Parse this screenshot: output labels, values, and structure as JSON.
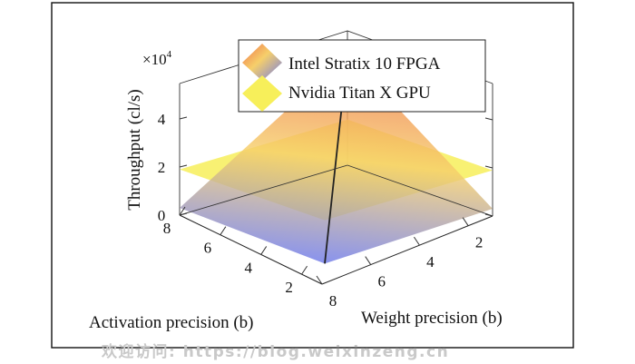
{
  "chart_data": {
    "type": "surface",
    "xlabel": "Weight precision (b)",
    "ylabel": "Activation precision (b)",
    "zlabel": "Throughput (cl/s)",
    "z_multiplier": "×10",
    "z_multiplier_exp": "4",
    "x_ticks": [
      "2",
      "4",
      "6",
      "8"
    ],
    "y_ticks": [
      "2",
      "4",
      "6",
      "8"
    ],
    "z_ticks": [
      "0",
      "2",
      "4"
    ],
    "legend": {
      "placement": "top-center",
      "entries": [
        "Intel Stratix 10 FPGA",
        "Nvidia Titan X GPU"
      ]
    },
    "series": [
      {
        "name": "Intel Stratix 10 FPGA",
        "colormap": [
          "#ef6f4a",
          "#f6cf6a",
          "#6f7bea"
        ],
        "corners": [
          {
            "weight": 1,
            "activation": 1,
            "throughput": 4.6
          },
          {
            "weight": 8,
            "activation": 1,
            "throughput": 0.3
          },
          {
            "weight": 1,
            "activation": 8,
            "throughput": 0.3
          },
          {
            "weight": 8,
            "activation": 8,
            "throughput": 0.1
          }
        ]
      },
      {
        "name": "Nvidia Titan X GPU",
        "color": "#f7ef5a",
        "corners": [
          {
            "weight": 1,
            "activation": 1,
            "throughput": 1.9
          },
          {
            "weight": 8,
            "activation": 1,
            "throughput": 1.9
          },
          {
            "weight": 1,
            "activation": 8,
            "throughput": 1.9
          },
          {
            "weight": 8,
            "activation": 8,
            "throughput": 1.9
          }
        ]
      }
    ]
  },
  "watermark": "欢迎访问: https://blog.weixinzeng.cn"
}
